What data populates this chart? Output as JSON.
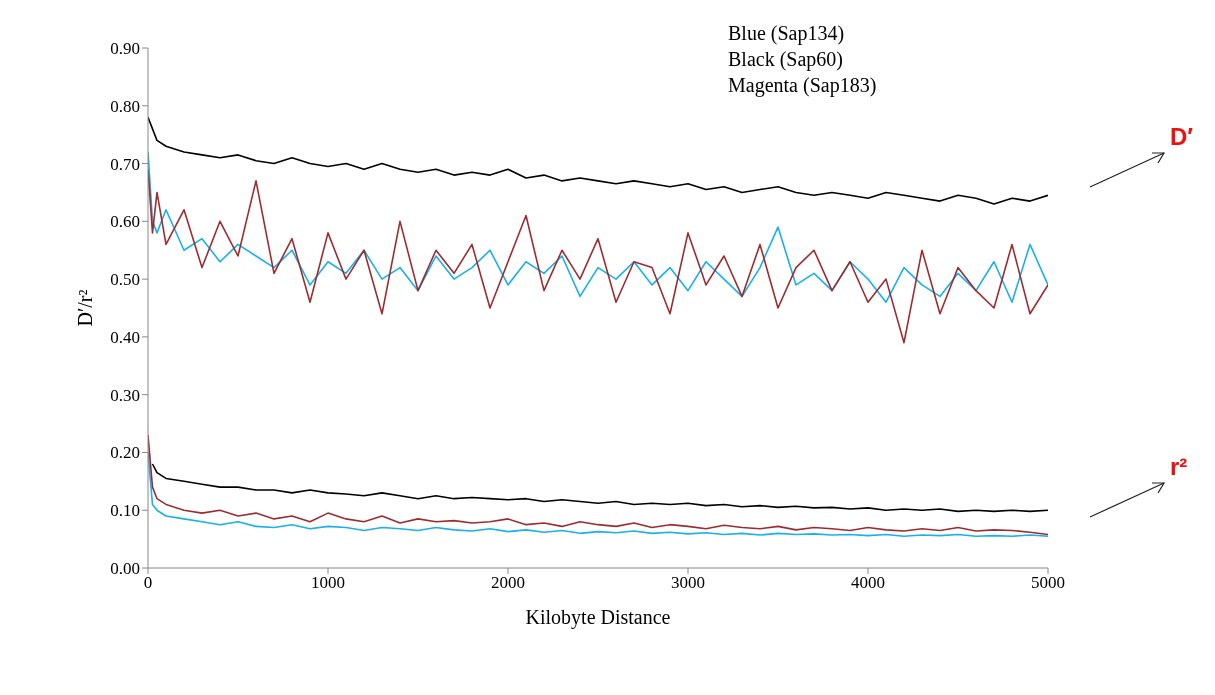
{
  "chart_data": {
    "type": "line",
    "xlabel": "Kilobyte Distance",
    "ylabel": "D′/r²",
    "x": [
      0,
      25,
      50,
      100,
      200,
      300,
      400,
      500,
      600,
      700,
      800,
      900,
      1000,
      1100,
      1200,
      1300,
      1400,
      1500,
      1600,
      1700,
      1800,
      1900,
      2000,
      2100,
      2200,
      2300,
      2400,
      2500,
      2600,
      2700,
      2800,
      2900,
      3000,
      3100,
      3200,
      3300,
      3400,
      3500,
      3600,
      3700,
      3800,
      3900,
      4000,
      4100,
      4200,
      4300,
      4400,
      4500,
      4600,
      4700,
      4800,
      4900,
      5000
    ],
    "xlim": [
      0,
      5000
    ],
    "xticks": [
      0,
      1000,
      2000,
      3000,
      4000,
      5000
    ],
    "ylim": [
      0,
      0.9
    ],
    "yticks": [
      {
        "value": 0,
        "label": "0.00"
      },
      {
        "value": 0.1,
        "label": "0.10"
      },
      {
        "value": 0.2,
        "label": "0.20"
      },
      {
        "value": 0.3,
        "label": "0.30"
      },
      {
        "value": 0.4,
        "label": "0.40"
      },
      {
        "value": 0.5,
        "label": "0.50"
      },
      {
        "value": 0.6,
        "label": "0.60"
      },
      {
        "value": 0.7,
        "label": "0.70"
      },
      {
        "value": 0.8,
        "label": "0.80"
      },
      {
        "value": 0.9,
        "label": "0.90"
      }
    ],
    "grid": false,
    "legend": false,
    "marker": "none",
    "line_style": "solid",
    "annotations": [
      "Blue (Sap134)",
      "Black (Sap60)",
      "Magenta (Sap183)",
      "D′",
      "r²"
    ],
    "series": [
      {
        "color": "#000000",
        "values": [
          0.78,
          0.76,
          0.74,
          0.73,
          0.72,
          0.715,
          0.71,
          0.715,
          0.705,
          0.7,
          0.71,
          0.7,
          0.695,
          0.7,
          0.69,
          0.7,
          0.69,
          0.685,
          0.69,
          0.68,
          0.685,
          0.68,
          0.69,
          0.675,
          0.68,
          0.67,
          0.675,
          0.67,
          0.665,
          0.67,
          0.665,
          0.66,
          0.665,
          0.655,
          0.66,
          0.65,
          0.655,
          0.66,
          0.65,
          0.645,
          0.65,
          0.645,
          0.64,
          0.65,
          0.645,
          0.64,
          0.635,
          0.645,
          0.64,
          0.63,
          0.64,
          0.635,
          0.645
        ]
      },
      {
        "color": "#1ab0e8",
        "values": [
          0.72,
          0.6,
          0.58,
          0.62,
          0.55,
          0.57,
          0.53,
          0.56,
          0.54,
          0.52,
          0.55,
          0.49,
          0.53,
          0.51,
          0.55,
          0.5,
          0.52,
          0.48,
          0.54,
          0.5,
          0.52,
          0.55,
          0.49,
          0.53,
          0.51,
          0.54,
          0.47,
          0.52,
          0.5,
          0.53,
          0.49,
          0.52,
          0.48,
          0.53,
          0.5,
          0.47,
          0.52,
          0.59,
          0.49,
          0.51,
          0.48,
          0.53,
          0.5,
          0.46,
          0.52,
          0.49,
          0.47,
          0.51,
          0.48,
          0.53,
          0.46,
          0.56,
          0.49
        ]
      },
      {
        "color": "#9b2d30",
        "values": [
          0.69,
          0.58,
          0.65,
          0.56,
          0.62,
          0.52,
          0.6,
          0.54,
          0.67,
          0.51,
          0.57,
          0.46,
          0.58,
          0.5,
          0.55,
          0.44,
          0.6,
          0.48,
          0.55,
          0.51,
          0.56,
          0.45,
          0.53,
          0.61,
          0.48,
          0.55,
          0.5,
          0.57,
          0.46,
          0.53,
          0.52,
          0.44,
          0.58,
          0.49,
          0.54,
          0.47,
          0.56,
          0.45,
          0.52,
          0.55,
          0.48,
          0.53,
          0.46,
          0.5,
          0.39,
          0.55,
          0.44,
          0.52,
          0.48,
          0.45,
          0.56,
          0.44,
          0.49
        ]
      },
      {
        "color": "#000000",
        "values": [
          null,
          0.18,
          0.165,
          0.155,
          0.15,
          0.145,
          0.14,
          0.14,
          0.135,
          0.135,
          0.13,
          0.135,
          0.13,
          0.128,
          0.125,
          0.13,
          0.125,
          0.12,
          0.125,
          0.12,
          0.122,
          0.12,
          0.118,
          0.12,
          0.115,
          0.118,
          0.115,
          0.112,
          0.115,
          0.11,
          0.112,
          0.11,
          0.112,
          0.108,
          0.11,
          0.106,
          0.108,
          0.105,
          0.107,
          0.104,
          0.105,
          0.102,
          0.104,
          0.1,
          0.102,
          0.1,
          0.102,
          0.098,
          0.1,
          0.098,
          0.1,
          0.098,
          0.1
        ]
      },
      {
        "color": "#1ab0e8",
        "values": [
          0.2,
          0.11,
          0.1,
          0.09,
          0.085,
          0.08,
          0.075,
          0.08,
          0.072,
          0.07,
          0.075,
          0.068,
          0.072,
          0.07,
          0.065,
          0.07,
          0.068,
          0.065,
          0.07,
          0.066,
          0.064,
          0.068,
          0.063,
          0.066,
          0.062,
          0.065,
          0.06,
          0.063,
          0.061,
          0.064,
          0.06,
          0.062,
          0.059,
          0.061,
          0.058,
          0.06,
          0.057,
          0.06,
          0.058,
          0.059,
          0.057,
          0.058,
          0.056,
          0.058,
          0.055,
          0.057,
          0.056,
          0.058,
          0.055,
          0.056,
          0.055,
          0.057,
          0.055
        ]
      },
      {
        "color": "#9b2d30",
        "values": [
          0.23,
          0.14,
          0.12,
          0.11,
          0.1,
          0.095,
          0.1,
          0.09,
          0.095,
          0.085,
          0.09,
          0.08,
          0.095,
          0.085,
          0.08,
          0.09,
          0.078,
          0.085,
          0.08,
          0.082,
          0.078,
          0.08,
          0.085,
          0.075,
          0.078,
          0.072,
          0.08,
          0.075,
          0.072,
          0.078,
          0.07,
          0.075,
          0.072,
          0.068,
          0.074,
          0.07,
          0.068,
          0.072,
          0.066,
          0.07,
          0.068,
          0.065,
          0.07,
          0.066,
          0.064,
          0.068,
          0.065,
          0.07,
          0.064,
          0.066,
          0.065,
          0.062,
          0.058
        ]
      }
    ]
  }
}
